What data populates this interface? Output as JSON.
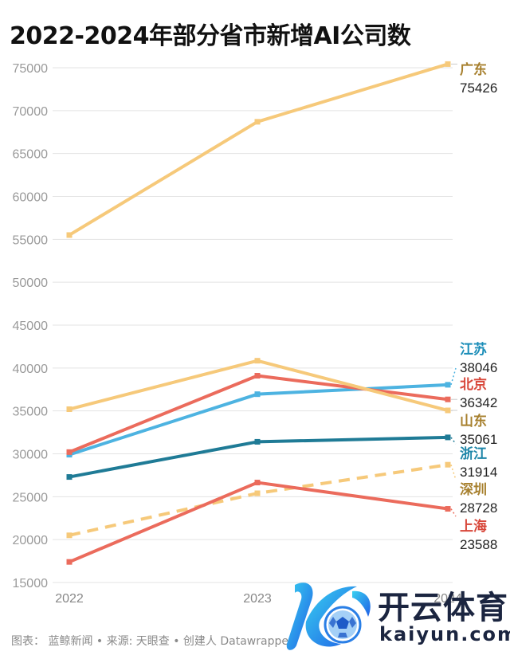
{
  "chart_data": {
    "type": "line",
    "title": "2022-2024年部分省市新增AI公司数",
    "xlabel": "",
    "ylabel": "",
    "x": [
      "2022",
      "2023",
      "2024"
    ],
    "x_tick_labels": [
      "2022",
      "2023",
      "2024"
    ],
    "ylim": [
      15000,
      75000
    ],
    "y_ticks": [
      15000,
      20000,
      25000,
      30000,
      35000,
      40000,
      45000,
      50000,
      55000,
      60000,
      65000,
      70000,
      75000
    ],
    "grid": true,
    "legend": "direct-labels-right",
    "series": [
      {
        "name": "广东",
        "values": [
          55500,
          68700,
          75426
        ],
        "end_label": "75426",
        "line_color": "#f6c97a",
        "label_color": "#a7802e",
        "dashed": false
      },
      {
        "name": "江苏",
        "values": [
          29900,
          36950,
          38046
        ],
        "end_label": "38046",
        "line_color": "#4db3e1",
        "label_color": "#1a8db8",
        "dashed": false
      },
      {
        "name": "北京",
        "values": [
          30200,
          39100,
          36342
        ],
        "end_label": "36342",
        "line_color": "#eb6b5c",
        "label_color": "#d8473a",
        "dashed": false
      },
      {
        "name": "山东",
        "values": [
          35200,
          40850,
          35061
        ],
        "end_label": "35061",
        "line_color": "#f6c97a",
        "label_color": "#a7802e",
        "dashed": false
      },
      {
        "name": "浙江",
        "values": [
          27300,
          31400,
          31914
        ],
        "end_label": "31914",
        "line_color": "#1f7b96",
        "label_color": "#1f86a8",
        "dashed": false
      },
      {
        "name": "深圳",
        "values": [
          20500,
          25400,
          28728
        ],
        "end_label": "28728",
        "line_color": "#f6c97a",
        "label_color": "#a7802e",
        "dashed": true
      },
      {
        "name": "上海",
        "values": [
          17400,
          26650,
          23588
        ],
        "end_label": "23588",
        "line_color": "#eb6b5c",
        "label_color": "#d8473a",
        "dashed": false
      }
    ]
  },
  "footer": {
    "text": "图表： 蓝鲸新闻 • 来源: 天眼查 • 创建人 Datawrapper"
  },
  "watermark": {
    "brand_cn": "开云体育",
    "brand_en": "kaiyun.com"
  },
  "colors": {
    "gridline": "#e3e3e3",
    "tick_label": "#9a9a9a",
    "value_label": "#222222"
  }
}
